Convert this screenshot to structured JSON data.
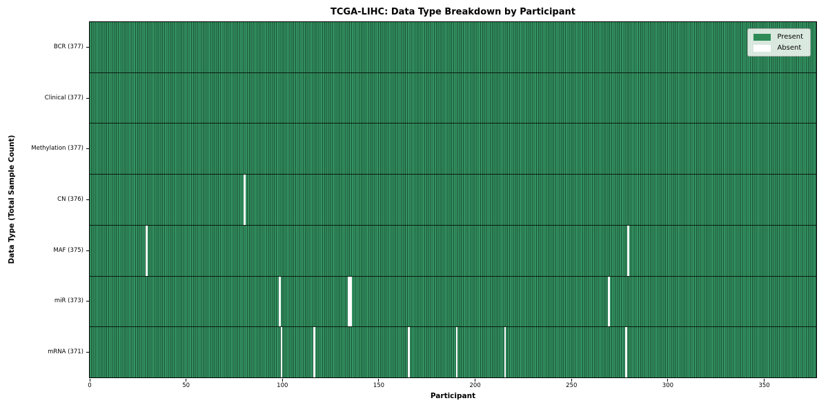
{
  "chart_data": {
    "type": "heatmap",
    "title": "TCGA-LIHC: Data Type Breakdown by Participant",
    "xlabel": "Participant",
    "ylabel": "Data Type (Total Sample Count)",
    "xlim": [
      0,
      377
    ],
    "n_participants": 377,
    "x_ticks": [
      0,
      50,
      100,
      150,
      200,
      250,
      300,
      350
    ],
    "grid": false,
    "legend_position": "upper right",
    "legend": [
      {
        "label": "Present",
        "color": "#2e8b57"
      },
      {
        "label": "Absent",
        "color": "#ffffff"
      }
    ],
    "rows": [
      {
        "name": "BCR",
        "label": "BCR (377)",
        "count": 377,
        "absent": []
      },
      {
        "name": "Clinical",
        "label": "Clinical (377)",
        "count": 377,
        "absent": []
      },
      {
        "name": "Methylation",
        "label": "Methylation (377)",
        "count": 377,
        "absent": []
      },
      {
        "name": "CN",
        "label": "CN (376)",
        "count": 376,
        "absent": [
          80
        ]
      },
      {
        "name": "MAF",
        "label": "MAF (375)",
        "count": 375,
        "absent": [
          29,
          279
        ]
      },
      {
        "name": "miR",
        "label": "miR (373)",
        "count": 373,
        "absent": [
          98,
          134,
          135,
          269
        ]
      },
      {
        "name": "mRNA",
        "label": "mRNA (371)",
        "count": 371,
        "absent": [
          99,
          116,
          165,
          190,
          215,
          278
        ]
      }
    ],
    "colors": {
      "present": "#2e8b57",
      "present_band": "#339361",
      "cell_edge": "#1c5236",
      "absent": "#ffffff",
      "row_divider": "#000000",
      "spine": "#000000"
    }
  }
}
